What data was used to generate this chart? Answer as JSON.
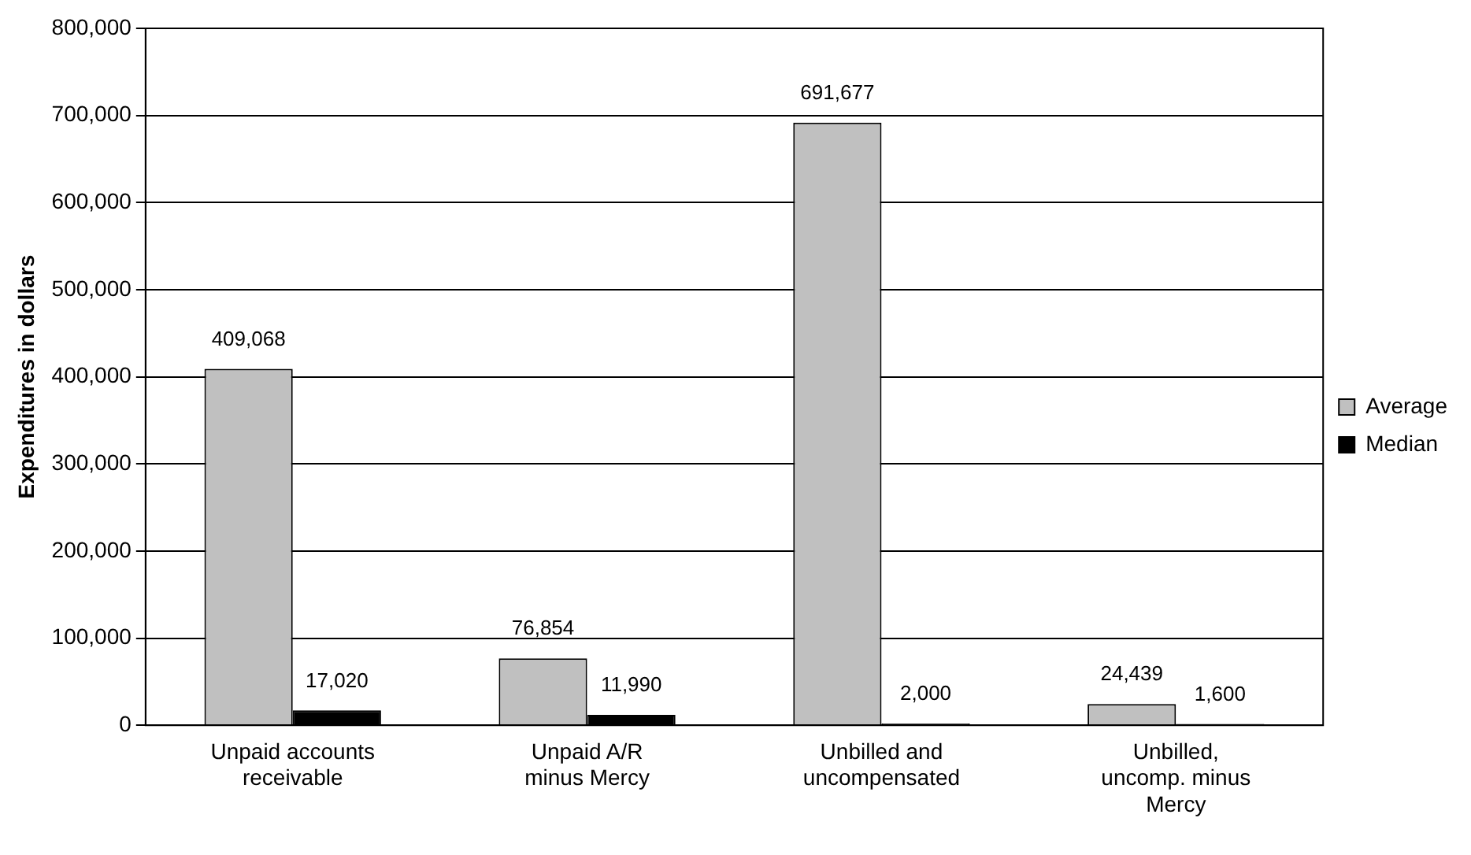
{
  "chart_data": {
    "type": "bar",
    "ylabel": "Expenditures in dollars",
    "categories": [
      "Unpaid accounts receivable",
      "Unpaid A/R minus Mercy",
      "Unbilled and uncompensated",
      "Unbilled, uncomp. minus Mercy"
    ],
    "series": [
      {
        "name": "Average",
        "color": "#c0c0c0",
        "values": [
          409068,
          76854,
          691677,
          24439
        ],
        "value_labels": [
          "409,068",
          "76,854",
          "691,677",
          "24,439"
        ]
      },
      {
        "name": "Median",
        "color": "#000000",
        "values": [
          17020,
          11990,
          2000,
          1600
        ],
        "value_labels": [
          "17,020",
          "11,990",
          "2,000",
          "1,600"
        ]
      }
    ],
    "ylim": [
      0,
      800000
    ],
    "yticks": [
      0,
      {
        "value": 100000,
        "label": "100,000"
      },
      {
        "value": 200000,
        "label": "200,000"
      },
      {
        "value": 300000,
        "label": "300,000"
      },
      {
        "value": 400000,
        "label": "400,000"
      },
      {
        "value": 500000,
        "label": "500,000"
      },
      {
        "value": 600000,
        "label": "600,000"
      },
      {
        "value": 700000,
        "label": "700,000"
      },
      {
        "value": 800000,
        "label": "800,000"
      }
    ],
    "grid": "y",
    "legend": "right"
  }
}
